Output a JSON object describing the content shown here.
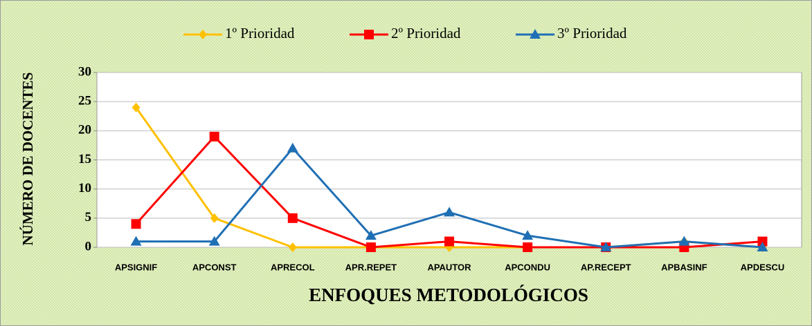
{
  "chart_data": {
    "type": "line",
    "x_label": "ENFOQUES METODOLÓGICOS",
    "y_label": "NÚMERO DE DOCENTES",
    "categories": [
      "APSIGNIF",
      "APCONST",
      "APRECOL",
      "APR.REPET",
      "APAUTOR",
      "APCONDU",
      "AP.RECEPT",
      "APBASINF",
      "APDESCU"
    ],
    "series": [
      {
        "name": "1º Prioridad",
        "color": "#ffc000",
        "marker": "diamond",
        "values": [
          24,
          5,
          0,
          0,
          0,
          0,
          0,
          1,
          0
        ]
      },
      {
        "name": "2º Prioridad",
        "color": "#ff0000",
        "marker": "square",
        "values": [
          4,
          19,
          5,
          0,
          1,
          0,
          0,
          0,
          1
        ]
      },
      {
        "name": "3º Prioridad",
        "color": "#1f6fb4",
        "marker": "triangle",
        "values": [
          1,
          1,
          17,
          2,
          6,
          2,
          0,
          1,
          0
        ]
      }
    ],
    "ylim": [
      0,
      30
    ],
    "yticks": [
      0,
      5,
      10,
      15,
      20,
      25,
      30
    ],
    "grid": true,
    "legend": "top"
  }
}
